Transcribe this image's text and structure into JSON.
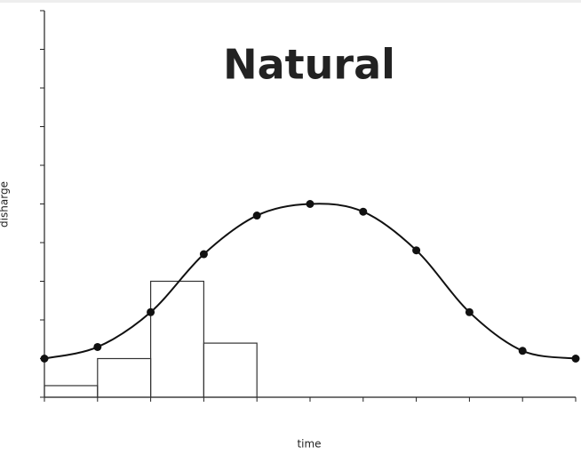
{
  "chart_data": [
    {
      "type": "line",
      "title": "Natural",
      "xlabel": "time",
      "ylabel": "disharge",
      "x": [
        0,
        1,
        2,
        3,
        4,
        5,
        6,
        7,
        8,
        9,
        10
      ],
      "values": [
        1.0,
        1.3,
        2.2,
        3.7,
        4.7,
        5.0,
        4.8,
        3.8,
        2.2,
        1.2,
        1.0
      ],
      "color": "#111111",
      "xlim": [
        0,
        10
      ],
      "ylim": [
        0,
        10
      ],
      "xticks": [
        0,
        1,
        2,
        3,
        4,
        5,
        6,
        7,
        8,
        9,
        10
      ],
      "yticks": [
        0,
        1,
        2,
        3,
        4,
        5,
        6,
        7,
        8,
        9,
        10
      ]
    },
    {
      "type": "histogram",
      "bins": [
        0,
        1,
        2,
        3,
        4
      ],
      "counts": [
        0.3,
        1.0,
        3.0,
        1.4
      ],
      "color": "#333333"
    }
  ]
}
